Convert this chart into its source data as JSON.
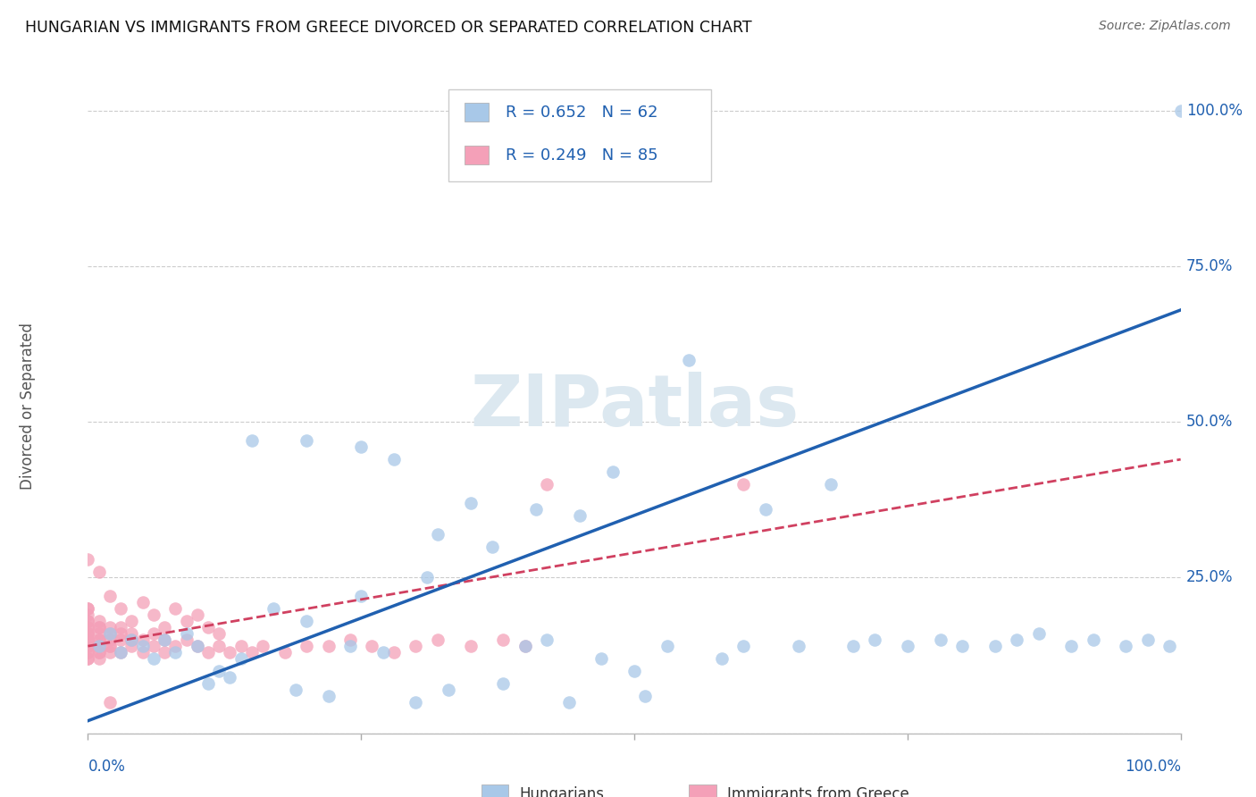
{
  "title": "HUNGARIAN VS IMMIGRANTS FROM GREECE DIVORCED OR SEPARATED CORRELATION CHART",
  "source": "Source: ZipAtlas.com",
  "ylabel": "Divorced or Separated",
  "blue_R": 0.652,
  "blue_N": 62,
  "pink_R": 0.249,
  "pink_N": 85,
  "blue_color": "#a8c8e8",
  "pink_color": "#f4a0b8",
  "blue_line_color": "#2060b0",
  "pink_line_color": "#d04060",
  "background_color": "#ffffff",
  "grid_color": "#cccccc",
  "watermark_color": "#dce8f0",
  "axis_label_color": "#2060b0",
  "title_color": "#111111",
  "source_color": "#666666",
  "ylabel_color": "#555555",
  "blue_x": [
    0.01,
    0.02,
    0.03,
    0.04,
    0.05,
    0.06,
    0.07,
    0.08,
    0.09,
    0.1,
    0.11,
    0.12,
    0.13,
    0.14,
    0.15,
    0.17,
    0.19,
    0.2,
    0.22,
    0.24,
    0.25,
    0.27,
    0.28,
    0.3,
    0.31,
    0.32,
    0.33,
    0.35,
    0.37,
    0.38,
    0.4,
    0.41,
    0.42,
    0.44,
    0.45,
    0.47,
    0.48,
    0.5,
    0.51,
    0.53,
    0.55,
    0.58,
    0.6,
    0.62,
    0.65,
    0.68,
    0.7,
    0.72,
    0.75,
    0.78,
    0.8,
    0.83,
    0.85,
    0.87,
    0.9,
    0.92,
    0.95,
    0.97,
    0.99,
    1.0,
    0.2,
    0.25
  ],
  "blue_y": [
    0.14,
    0.16,
    0.13,
    0.15,
    0.14,
    0.12,
    0.15,
    0.13,
    0.16,
    0.14,
    0.08,
    0.1,
    0.09,
    0.12,
    0.47,
    0.2,
    0.07,
    0.18,
    0.06,
    0.14,
    0.22,
    0.13,
    0.44,
    0.05,
    0.25,
    0.32,
    0.07,
    0.37,
    0.3,
    0.08,
    0.14,
    0.36,
    0.15,
    0.05,
    0.35,
    0.12,
    0.42,
    0.1,
    0.06,
    0.14,
    0.6,
    0.12,
    0.14,
    0.36,
    0.14,
    0.4,
    0.14,
    0.15,
    0.14,
    0.15,
    0.14,
    0.14,
    0.15,
    0.16,
    0.14,
    0.15,
    0.14,
    0.15,
    0.14,
    1.0,
    0.47,
    0.46
  ],
  "pink_x": [
    0.0,
    0.0,
    0.0,
    0.0,
    0.0,
    0.0,
    0.0,
    0.0,
    0.0,
    0.0,
    0.0,
    0.0,
    0.0,
    0.0,
    0.0,
    0.0,
    0.0,
    0.0,
    0.0,
    0.0,
    0.01,
    0.01,
    0.01,
    0.01,
    0.01,
    0.01,
    0.01,
    0.01,
    0.01,
    0.01,
    0.02,
    0.02,
    0.02,
    0.02,
    0.02,
    0.02,
    0.03,
    0.03,
    0.03,
    0.03,
    0.04,
    0.04,
    0.04,
    0.05,
    0.05,
    0.06,
    0.06,
    0.07,
    0.07,
    0.08,
    0.09,
    0.1,
    0.11,
    0.12,
    0.13,
    0.14,
    0.15,
    0.16,
    0.18,
    0.2,
    0.22,
    0.24,
    0.26,
    0.28,
    0.3,
    0.32,
    0.35,
    0.38,
    0.4,
    0.42,
    0.0,
    0.01,
    0.02,
    0.03,
    0.04,
    0.05,
    0.06,
    0.07,
    0.08,
    0.09,
    0.1,
    0.11,
    0.12,
    0.6,
    0.02
  ],
  "pink_y": [
    0.15,
    0.17,
    0.14,
    0.16,
    0.18,
    0.13,
    0.2,
    0.15,
    0.12,
    0.19,
    0.17,
    0.14,
    0.16,
    0.13,
    0.15,
    0.18,
    0.12,
    0.2,
    0.14,
    0.16,
    0.17,
    0.15,
    0.13,
    0.18,
    0.14,
    0.16,
    0.12,
    0.15,
    0.17,
    0.13,
    0.16,
    0.14,
    0.17,
    0.15,
    0.13,
    0.14,
    0.16,
    0.15,
    0.13,
    0.17,
    0.15,
    0.14,
    0.16,
    0.15,
    0.13,
    0.14,
    0.16,
    0.15,
    0.13,
    0.14,
    0.15,
    0.14,
    0.13,
    0.14,
    0.13,
    0.14,
    0.13,
    0.14,
    0.13,
    0.14,
    0.14,
    0.15,
    0.14,
    0.13,
    0.14,
    0.15,
    0.14,
    0.15,
    0.14,
    0.4,
    0.28,
    0.26,
    0.22,
    0.2,
    0.18,
    0.21,
    0.19,
    0.17,
    0.2,
    0.18,
    0.19,
    0.17,
    0.16,
    0.4,
    0.05
  ]
}
